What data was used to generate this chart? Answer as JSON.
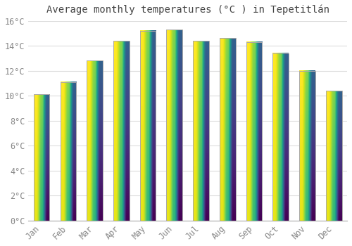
{
  "title": "Average monthly temperatures (°C ) in Tepetitlán",
  "months": [
    "Jan",
    "Feb",
    "Mar",
    "Apr",
    "May",
    "Jun",
    "Jul",
    "Aug",
    "Sep",
    "Oct",
    "Nov",
    "Dec"
  ],
  "values": [
    10.1,
    11.1,
    12.8,
    14.4,
    15.2,
    15.3,
    14.4,
    14.6,
    14.3,
    13.4,
    12.0,
    10.4
  ],
  "bar_color_main": "#FFA500",
  "bar_color_top": "#FFD04A",
  "bar_edge_color": "#AAAAAA",
  "ylim": [
    0,
    16
  ],
  "yticks": [
    0,
    2,
    4,
    6,
    8,
    10,
    12,
    14,
    16
  ],
  "ytick_labels": [
    "0°C",
    "2°C",
    "4°C",
    "6°C",
    "8°C",
    "10°C",
    "12°C",
    "14°C",
    "16°C"
  ],
  "background_color": "#ffffff",
  "grid_color": "#dddddd",
  "bar_width": 0.6,
  "title_fontsize": 10,
  "tick_fontsize": 8.5
}
